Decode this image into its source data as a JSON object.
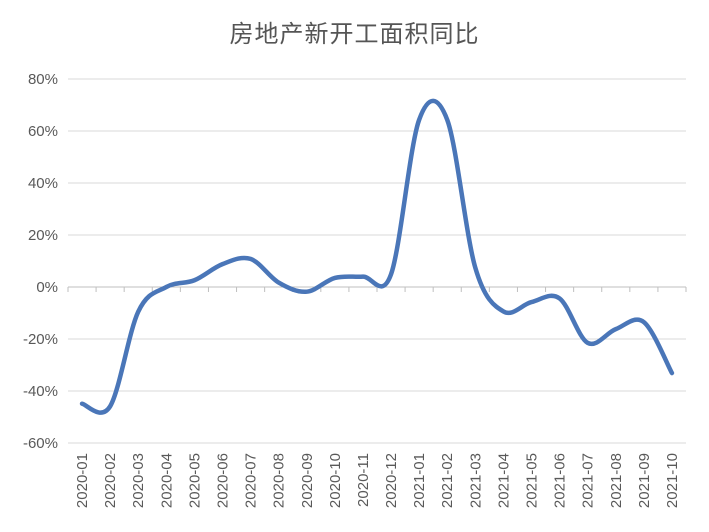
{
  "chart_data": {
    "type": "line",
    "title": "房地产新开工面积同比",
    "xlabel": "",
    "ylabel": "",
    "categories": [
      "2020-01",
      "2020-02",
      "2020-03",
      "2020-04",
      "2020-05",
      "2020-06",
      "2020-07",
      "2020-08",
      "2020-09",
      "2020-10",
      "2020-11",
      "2020-12",
      "2021-01",
      "2021-02",
      "2021-03",
      "2021-04",
      "2021-05",
      "2021-06",
      "2021-07",
      "2021-08",
      "2021-09",
      "2021-10"
    ],
    "y_ticks": [
      80,
      60,
      40,
      20,
      0,
      -20,
      -40,
      -60
    ],
    "y_tick_labels": [
      "80%",
      "60%",
      "40%",
      "20%",
      "0%",
      "-20%",
      "-40%",
      "-60%"
    ],
    "ylim": [
      -60,
      80
    ],
    "y_unit": "%",
    "grid": true,
    "legend": "none",
    "line_color": "#4a76b8",
    "grid_color": "#d9d9d9",
    "axis_color": "#bfbfbf",
    "series": [
      {
        "values": [
          -44.9,
          -45.9,
          -9.5,
          0.0,
          2.6,
          8.8,
          10.8,
          1.7,
          -1.8,
          3.5,
          4.0,
          4.9,
          64.3,
          64.3,
          7.4,
          -9.4,
          -5.8,
          -4.4,
          -21.5,
          -16.2,
          -13.5,
          -33.1
        ]
      }
    ]
  }
}
